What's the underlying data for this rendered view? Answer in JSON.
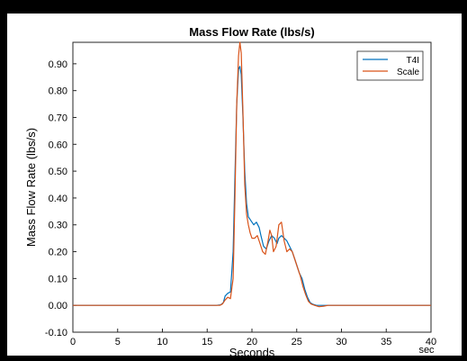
{
  "chart_data": {
    "type": "line",
    "title": "Mass Flow Rate (lbs/s)",
    "xlabel": "Seconds",
    "x_unit_label": "sec",
    "ylabel": "Mass Flow Rate (lbs/s)",
    "xlim": [
      0,
      40
    ],
    "ylim": [
      -0.1,
      0.98
    ],
    "xticks": [
      0,
      5,
      10,
      15,
      20,
      25,
      30,
      35,
      40
    ],
    "yticks": [
      -0.1,
      0.0,
      0.1,
      0.2,
      0.3,
      0.4,
      0.5,
      0.6,
      0.7,
      0.8,
      0.9
    ],
    "ytick_labels": [
      "-0.10",
      "0.00",
      "0.10",
      "0.20",
      "0.30",
      "0.40",
      "0.50",
      "0.60",
      "0.70",
      "0.80",
      "0.90"
    ],
    "grid": false,
    "legend_position": "top-right",
    "series": [
      {
        "name": "T4I",
        "color": "#0072BD",
        "x": [
          0,
          16.0,
          16.5,
          16.8,
          17.0,
          17.3,
          17.6,
          17.9,
          18.1,
          18.3,
          18.5,
          18.65,
          18.8,
          19.0,
          19.2,
          19.4,
          19.6,
          19.8,
          20.0,
          20.2,
          20.5,
          20.8,
          21.0,
          21.3,
          21.6,
          21.9,
          22.2,
          22.5,
          22.8,
          23.0,
          23.3,
          23.6,
          23.9,
          24.2,
          24.5,
          24.8,
          25.0,
          25.3,
          25.6,
          25.9,
          26.2,
          26.5,
          26.8,
          27.2,
          27.6,
          28.0,
          30.0,
          35.0,
          40.0
        ],
        "y": [
          0.0,
          0.0,
          0.002,
          0.01,
          0.035,
          0.045,
          0.05,
          0.2,
          0.48,
          0.75,
          0.88,
          0.89,
          0.86,
          0.7,
          0.5,
          0.38,
          0.33,
          0.32,
          0.31,
          0.3,
          0.31,
          0.29,
          0.26,
          0.22,
          0.21,
          0.24,
          0.26,
          0.25,
          0.23,
          0.25,
          0.26,
          0.25,
          0.24,
          0.22,
          0.2,
          0.17,
          0.15,
          0.12,
          0.1,
          0.06,
          0.03,
          0.01,
          0.004,
          0.0,
          0.0,
          0.0,
          0.0,
          0.0,
          0.0
        ]
      },
      {
        "name": "Scale",
        "color": "#D95319",
        "x": [
          0,
          16.4,
          16.7,
          17.0,
          17.3,
          17.6,
          17.9,
          18.1,
          18.3,
          18.5,
          18.65,
          18.8,
          19.0,
          19.2,
          19.4,
          19.6,
          19.8,
          20.0,
          20.3,
          20.6,
          20.9,
          21.2,
          21.5,
          21.8,
          22.0,
          22.2,
          22.4,
          22.7,
          23.0,
          23.3,
          23.6,
          23.9,
          24.2,
          24.5,
          24.8,
          25.1,
          25.4,
          25.7,
          26.0,
          26.3,
          26.6,
          27.0,
          27.5,
          28.0,
          28.5,
          30.0,
          35.0,
          40.0
        ],
        "y": [
          0.0,
          0.0,
          0.005,
          0.02,
          0.03,
          0.025,
          0.1,
          0.4,
          0.75,
          0.93,
          0.98,
          0.94,
          0.72,
          0.45,
          0.34,
          0.3,
          0.27,
          0.25,
          0.25,
          0.26,
          0.23,
          0.2,
          0.19,
          0.24,
          0.28,
          0.26,
          0.2,
          0.22,
          0.3,
          0.31,
          0.24,
          0.2,
          0.21,
          0.2,
          0.17,
          0.14,
          0.11,
          0.07,
          0.04,
          0.015,
          0.005,
          0.0,
          -0.005,
          -0.003,
          0.0,
          0.0,
          0.0,
          0.0
        ]
      }
    ]
  }
}
